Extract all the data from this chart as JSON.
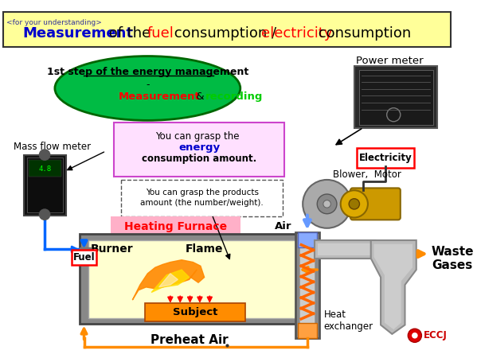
{
  "title_box_color": "#FFFF99",
  "title_box_border": "#333333",
  "bg_color": "#FFFFFF",
  "small_text": "<for your understanding>",
  "ellipse_color": "#00BB44",
  "ellipse_border": "#006600",
  "ellipse_text1": "1st step of the energy management",
  "ellipse_text2": "-",
  "power_meter_text": "Power meter",
  "mass_flow_meter_text": "Mass flow meter",
  "box1_color": "#FFE0FF",
  "box2_text1": "You can grasp the products",
  "box2_text2": "amount (the number/weight).",
  "heating_furnace_text": "Heating Furnace",
  "furnace_body_color": "#FFFFD0",
  "burner_text": "Burner",
  "flame_text": "Flame",
  "subject_color": "#FF8C00",
  "subject_text": "Subject",
  "fuel_text": "Fuel",
  "air_text": "Air",
  "blower_motor_text": "Blower,  Motor",
  "electricity_text": "Electricity",
  "waste_gases_text": "Waste\nGases",
  "heat_exchanger_text": "Heat\nexchanger",
  "preheat_air_text": "Preheat Air",
  "arrow_orange": "#FF8C00",
  "arrow_blue": "#0066FF"
}
